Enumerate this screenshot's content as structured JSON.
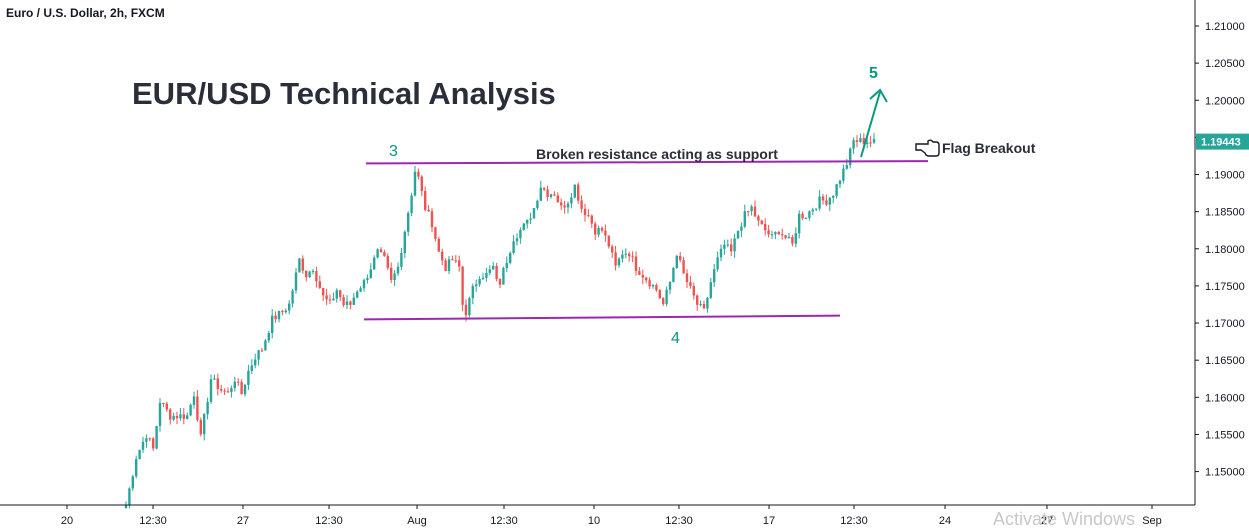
{
  "header": {
    "symbol_label": "Euro / U.S. Dollar, 2h, FXCM"
  },
  "watermark": "Activate Windows",
  "colors": {
    "up": "#26a69a",
    "down": "#ef5350",
    "trendline": "#9c27b0",
    "annotation": "#089981",
    "price_badge": "#26a69a",
    "axis_text": "#131722",
    "grid": "#e0e3eb"
  },
  "chart_data": {
    "type": "candlestick",
    "title": "EUR/USD Technical Analysis",
    "xlabel": "",
    "ylabel": "",
    "ylim": [
      1.1455,
      1.2135
    ],
    "y_ticks": [
      "1.15000",
      "1.15500",
      "1.16000",
      "1.16500",
      "1.17000",
      "1.17500",
      "1.18000",
      "1.18500",
      "1.19000",
      "1.19500",
      "1.20000",
      "1.20500",
      "1.21000"
    ],
    "y_tick_values": [
      1.15,
      1.155,
      1.16,
      1.165,
      1.17,
      1.175,
      1.18,
      1.185,
      1.19,
      1.195,
      1.2,
      1.205,
      1.21
    ],
    "x_ticks": [
      "20",
      "12:30",
      "27",
      "12:30",
      "Aug",
      "12:30",
      "10",
      "12:30",
      "17",
      "12:30",
      "24",
      "27",
      "Sep"
    ],
    "current_price": "1.19443",
    "current_price_value": 1.19443,
    "price_path": [
      [
        0,
        1.1455
      ],
      [
        3,
        1.152
      ],
      [
        6,
        1.155
      ],
      [
        8,
        1.153
      ],
      [
        10,
        1.1595
      ],
      [
        13,
        1.1575
      ],
      [
        15,
        1.1575
      ],
      [
        18,
        1.1575
      ],
      [
        20,
        1.1605
      ],
      [
        22,
        1.1545
      ],
      [
        25,
        1.1625
      ],
      [
        28,
        1.161
      ],
      [
        30,
        1.1605
      ],
      [
        32,
        1.1625
      ],
      [
        34,
        1.1605
      ],
      [
        36,
        1.1635
      ],
      [
        38,
        1.1655
      ],
      [
        40,
        1.1665
      ],
      [
        43,
        1.1705
      ],
      [
        46,
        1.1715
      ],
      [
        48,
        1.1725
      ],
      [
        51,
        1.1785
      ],
      [
        53,
        1.1765
      ],
      [
        55,
        1.1775
      ],
      [
        58,
        1.1735
      ],
      [
        60,
        1.1725
      ],
      [
        62,
        1.1745
      ],
      [
        64,
        1.1725
      ],
      [
        66,
        1.1725
      ],
      [
        68,
        1.1745
      ],
      [
        70,
        1.1755
      ],
      [
        72,
        1.1775
      ],
      [
        74,
        1.1795
      ],
      [
        76,
        1.1785
      ],
      [
        78,
        1.1755
      ],
      [
        80,
        1.1775
      ],
      [
        82,
        1.1825
      ],
      [
        84,
        1.1875
      ],
      [
        85,
        1.1905
      ],
      [
        86,
        1.1895
      ],
      [
        88,
        1.1855
      ],
      [
        90,
        1.1835
      ],
      [
        92,
        1.1795
      ],
      [
        94,
        1.1775
      ],
      [
        96,
        1.1785
      ],
      [
        98,
        1.1775
      ],
      [
        99,
        1.1725
      ],
      [
        100,
        1.1715
      ],
      [
        102,
        1.1745
      ],
      [
        104,
        1.1765
      ],
      [
        106,
        1.1765
      ],
      [
        108,
        1.1775
      ],
      [
        109,
        1.1755
      ],
      [
        110,
        1.1755
      ],
      [
        112,
        1.1785
      ],
      [
        114,
        1.1815
      ],
      [
        116,
        1.1825
      ],
      [
        118,
        1.1835
      ],
      [
        120,
        1.1855
      ],
      [
        122,
        1.1885
      ],
      [
        124,
        1.1875
      ],
      [
        126,
        1.1875
      ],
      [
        128,
        1.1855
      ],
      [
        130,
        1.1865
      ],
      [
        132,
        1.1885
      ],
      [
        134,
        1.1855
      ],
      [
        136,
        1.1845
      ],
      [
        138,
        1.1825
      ],
      [
        140,
        1.1825
      ],
      [
        142,
        1.1805
      ],
      [
        144,
        1.1775
      ],
      [
        146,
        1.1795
      ],
      [
        148,
        1.1795
      ],
      [
        150,
        1.1775
      ],
      [
        152,
        1.1765
      ],
      [
        154,
        1.1755
      ],
      [
        156,
        1.1745
      ],
      [
        158,
        1.1725
      ],
      [
        160,
        1.1755
      ],
      [
        162,
        1.1795
      ],
      [
        164,
        1.1765
      ],
      [
        166,
        1.1745
      ],
      [
        168,
        1.1725
      ],
      [
        170,
        1.1715
      ],
      [
        172,
        1.1755
      ],
      [
        174,
        1.1785
      ],
      [
        176,
        1.1805
      ],
      [
        178,
        1.1795
      ],
      [
        180,
        1.1825
      ],
      [
        182,
        1.1845
      ],
      [
        184,
        1.1855
      ],
      [
        186,
        1.1835
      ],
      [
        188,
        1.1825
      ],
      [
        190,
        1.1815
      ],
      [
        192,
        1.1825
      ],
      [
        194,
        1.1815
      ],
      [
        196,
        1.1805
      ],
      [
        198,
        1.1845
      ],
      [
        200,
        1.1845
      ],
      [
        202,
        1.1855
      ],
      [
        204,
        1.1865
      ],
      [
        206,
        1.1865
      ],
      [
        208,
        1.1875
      ],
      [
        210,
        1.1895
      ],
      [
        212,
        1.1915
      ],
      [
        214,
        1.1945
      ],
      [
        216,
        1.1945
      ],
      [
        218,
        1.1945
      ],
      [
        220,
        1.1943
      ]
    ],
    "annotations": [
      {
        "label": "3",
        "price": 1.1925
      },
      {
        "label": "4",
        "price": 1.1688
      },
      {
        "label": "5",
        "price": 1.2028
      },
      {
        "label": "Broken resistance acting as support",
        "price": 1.1925
      },
      {
        "label": "Flag Breakout",
        "price": 1.1935
      }
    ],
    "lines": [
      {
        "name": "resistance-support",
        "from_price": 1.1915,
        "to_price": 1.1918
      },
      {
        "name": "support",
        "from_price": 1.1705,
        "to_price": 1.171
      }
    ]
  }
}
